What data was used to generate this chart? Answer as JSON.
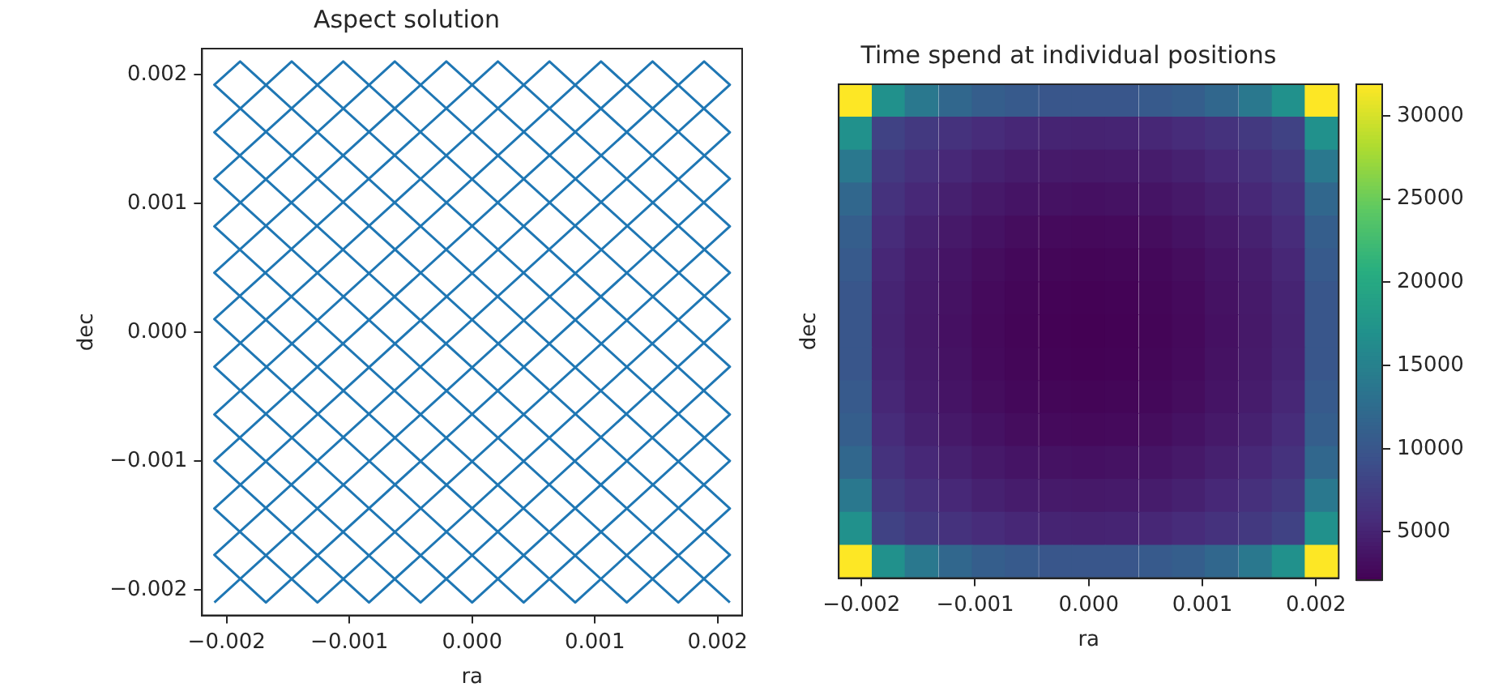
{
  "chart_data": [
    {
      "type": "line",
      "title": "Aspect solution",
      "xlabel": "ra",
      "ylabel": "dec",
      "color": "#1f77b4",
      "x": [
        -0.0021,
        0.0021,
        0.00147,
        -0.0021,
        -0.00084,
        0.0021,
        0.00021,
        -0.0021,
        0.00042,
        0.0021,
        -0.00105,
        -0.0021,
        0.00168,
        0.0021,
        -0.0021,
        -0.00189,
        0.0021,
        0.00126,
        -0.0021,
        -0.00063,
        0.0021,
        0,
        -0.0021,
        0.00063,
        0.0021,
        -0.00126,
        -0.0021,
        0.00189,
        0.0021,
        -0.0021,
        -0.00168,
        0.0021,
        0.00105,
        -0.0021,
        -0.00042,
        0.0021,
        -0.00021,
        -0.0021,
        0.00084,
        0.0021,
        -0.00147,
        -0.0021,
        0.0021
      ],
      "values": [
        -0.0021,
        0.00155,
        0.0021,
        -0.001,
        -0.0021,
        0.00046,
        0.0021,
        0.0001,
        -0.0021,
        -0.00064,
        0.0021,
        0.00119,
        -0.0021,
        -0.00173,
        0.00192,
        0.0021,
        -0.00137,
        -0.0021,
        0.00082,
        0.0021,
        -0.00027,
        -0.0021,
        -0.00027,
        0.0021,
        0.00082,
        -0.0021,
        -0.00137,
        0.0021,
        0.00192,
        -0.00173,
        -0.0021,
        0.00119,
        0.0021,
        -0.00064,
        -0.0021,
        0.0001,
        0.0021,
        0.00046,
        -0.0021,
        -0.001,
        0.0021,
        0.00155,
        -0.0021
      ],
      "xlim": [
        -0.0022,
        0.0022
      ],
      "ylim": [
        -0.0022,
        0.0022
      ],
      "xticks": [
        {
          "value": -0.002,
          "label": "−0.002"
        },
        {
          "value": -0.001,
          "label": "−0.001"
        },
        {
          "value": 0,
          "label": "0.000"
        },
        {
          "value": 0.001,
          "label": "0.001"
        },
        {
          "value": 0.002,
          "label": "0.002"
        }
      ],
      "yticks": [
        {
          "value": -0.002,
          "label": "−0.002"
        },
        {
          "value": -0.001,
          "label": "−0.001"
        },
        {
          "value": 0,
          "label": "0.000"
        },
        {
          "value": 0.001,
          "label": "0.001"
        },
        {
          "value": 0.002,
          "label": "0.002"
        }
      ]
    },
    {
      "type": "heatmap",
      "title": "Time spend at individual positions",
      "xlabel": "ra",
      "ylabel": "dec",
      "x": [
        -0.00205,
        -0.00176,
        -0.00147,
        -0.00117,
        -0.00088,
        -0.00059,
        -0.00029,
        0,
        0.00029,
        0.00059,
        0.00088,
        0.00117,
        0.00147,
        0.00176,
        0.00205
      ],
      "cells": [
        [
          31900,
          17000,
          14000,
          12000,
          11000,
          10500,
          10000,
          10000,
          10000,
          10500,
          11000,
          12000,
          14000,
          17000,
          31900
        ],
        [
          17000,
          7900,
          7000,
          6300,
          5700,
          5300,
          5100,
          5000,
          5100,
          5300,
          5700,
          6300,
          7000,
          7900,
          17000
        ],
        [
          14000,
          7000,
          6100,
          5400,
          4800,
          4400,
          4200,
          4100,
          4200,
          4400,
          4800,
          5400,
          6100,
          7000,
          14000
        ],
        [
          12000,
          6300,
          5400,
          4700,
          4100,
          3700,
          3500,
          3400,
          3500,
          3700,
          4100,
          4700,
          5400,
          6300,
          12000
        ],
        [
          11000,
          5700,
          4800,
          4100,
          3500,
          3100,
          2900,
          2800,
          2900,
          3100,
          3500,
          4100,
          4800,
          5700,
          11000
        ],
        [
          10500,
          5300,
          4400,
          3700,
          3100,
          2700,
          2500,
          2400,
          2500,
          2700,
          3100,
          3700,
          4400,
          5300,
          10500
        ],
        [
          10000,
          5100,
          4200,
          3500,
          2900,
          2500,
          2300,
          2200,
          2300,
          2500,
          2900,
          3500,
          4200,
          5100,
          10000
        ],
        [
          10000,
          5000,
          4100,
          3400,
          2800,
          2400,
          2200,
          2100,
          2200,
          2400,
          2800,
          3400,
          4100,
          5000,
          10000
        ],
        [
          10000,
          5100,
          4200,
          3500,
          2900,
          2500,
          2300,
          2200,
          2300,
          2500,
          2900,
          3500,
          4200,
          5100,
          10000
        ],
        [
          10500,
          5300,
          4400,
          3700,
          3100,
          2700,
          2500,
          2400,
          2500,
          2700,
          3100,
          3700,
          4400,
          5300,
          10500
        ],
        [
          11000,
          5700,
          4800,
          4100,
          3500,
          3100,
          2900,
          2800,
          2900,
          3100,
          3500,
          4100,
          4800,
          5700,
          11000
        ],
        [
          12000,
          6300,
          5400,
          4700,
          4100,
          3700,
          3500,
          3400,
          3500,
          3700,
          4100,
          4700,
          5400,
          6300,
          12000
        ],
        [
          14000,
          7000,
          6100,
          5400,
          4800,
          4400,
          4200,
          4100,
          4200,
          4400,
          4800,
          5400,
          6100,
          7000,
          14000
        ],
        [
          17000,
          7900,
          7000,
          6300,
          5700,
          5300,
          5100,
          5000,
          5100,
          5300,
          5700,
          6300,
          7000,
          7900,
          17000
        ],
        [
          31900,
          17000,
          14000,
          12000,
          11000,
          10500,
          10000,
          10000,
          10000,
          10500,
          11000,
          12000,
          14000,
          17000,
          31900
        ]
      ],
      "clim": [
        2100,
        31900
      ],
      "cticks": [
        5000,
        10000,
        15000,
        20000,
        25000,
        30000
      ],
      "y_categories": [
        null,
        null,
        null,
        null,
        null,
        null,
        null,
        null,
        null,
        null,
        null,
        null,
        null,
        null,
        null
      ],
      "xlim": [
        -0.0022,
        0.0022
      ],
      "xticks": [
        {
          "value": -0.002,
          "label": "−0.002"
        },
        {
          "value": -0.001,
          "label": "−0.001"
        },
        {
          "value": 0,
          "label": "0.000"
        },
        {
          "value": 0.001,
          "label": "0.001"
        },
        {
          "value": 0.002,
          "label": "0.002"
        }
      ]
    }
  ]
}
